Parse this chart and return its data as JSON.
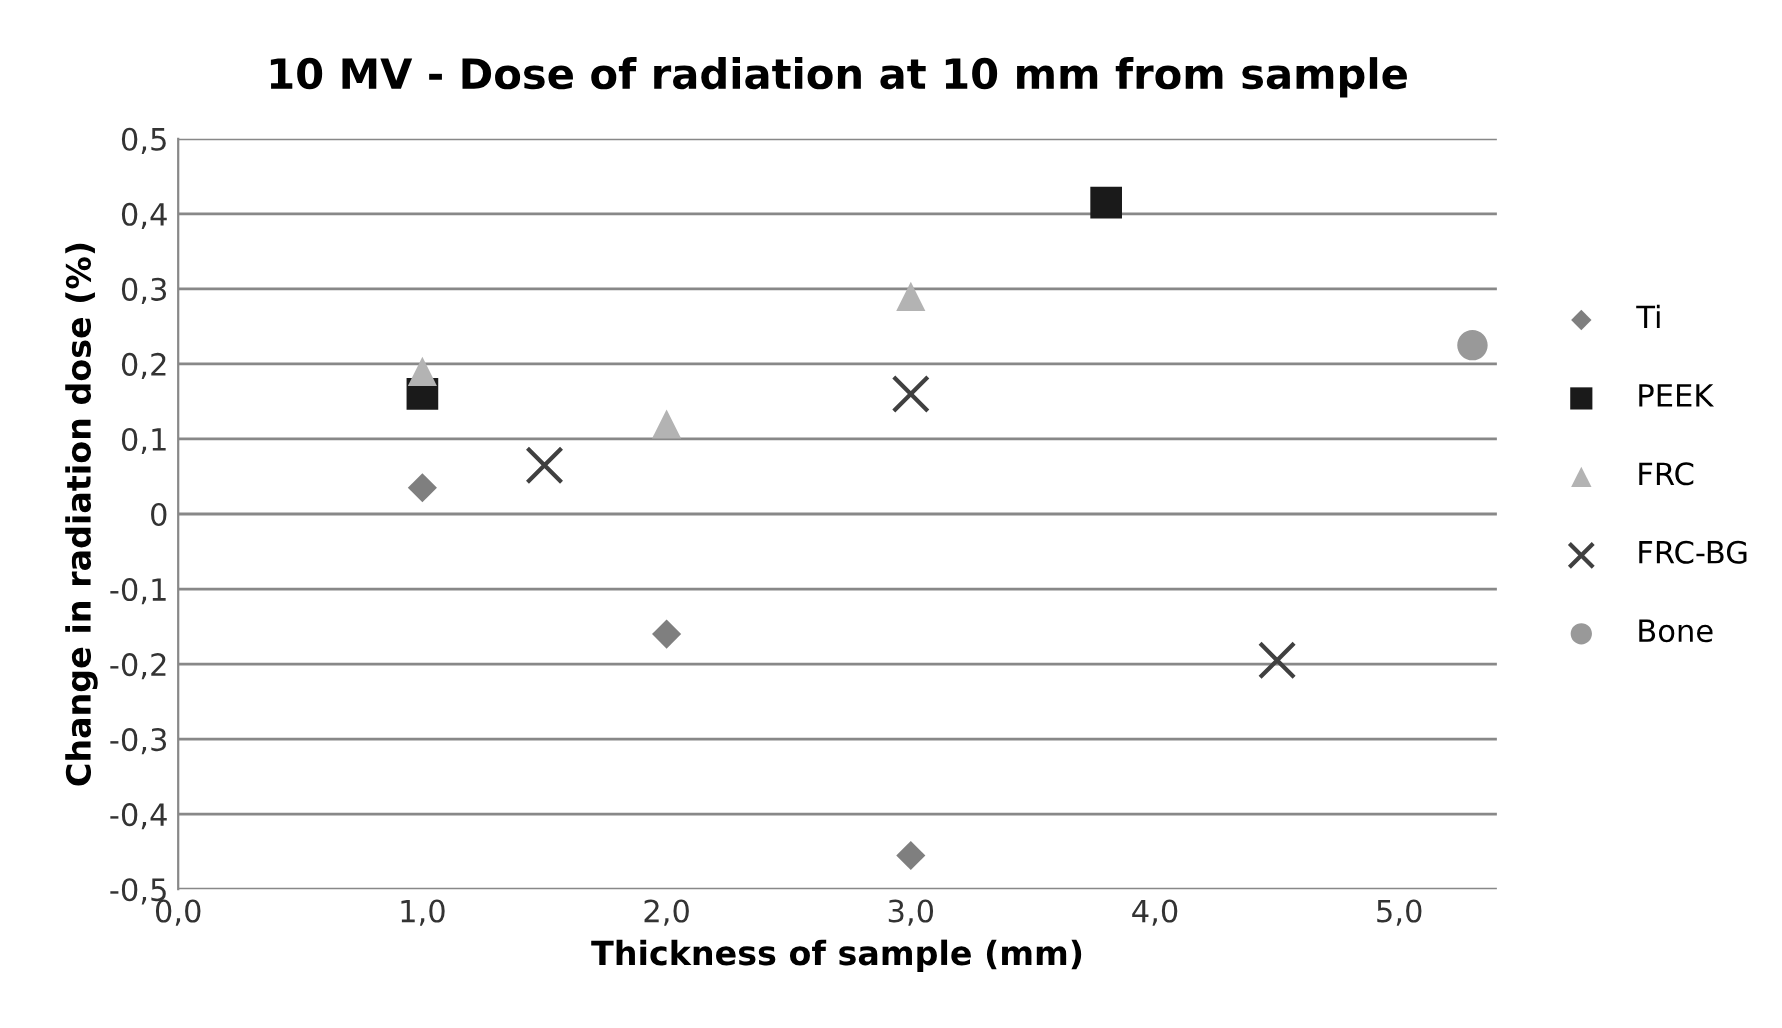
{
  "chart_data": {
    "type": "scatter",
    "title": "10 MV - Dose of radiation at 10 mm from sample",
    "xlabel": "Thickness of sample (mm)",
    "ylabel": "Change in radiation dose (%)",
    "xlim": [
      0,
      5.4
    ],
    "ylim": [
      -0.5,
      0.5
    ],
    "xticks": [
      {
        "value": 0,
        "label": "0,0"
      },
      {
        "value": 1,
        "label": "1,0"
      },
      {
        "value": 2,
        "label": "2,0"
      },
      {
        "value": 3,
        "label": "3,0"
      },
      {
        "value": 4,
        "label": "4,0"
      },
      {
        "value": 5,
        "label": "5,0"
      }
    ],
    "yticks": [
      {
        "value": -0.5,
        "label": "-0,5"
      },
      {
        "value": -0.4,
        "label": "-0,4"
      },
      {
        "value": -0.3,
        "label": "-0,3"
      },
      {
        "value": -0.2,
        "label": "-0,2"
      },
      {
        "value": -0.1,
        "label": "-0,1"
      },
      0,
      {
        "value": 0.1,
        "label": "0,1"
      },
      {
        "value": 0.2,
        "label": "0,2"
      },
      {
        "value": 0.3,
        "label": "0,3"
      },
      {
        "value": 0.4,
        "label": "0,4"
      },
      {
        "value": 0.5,
        "label": "0,5"
      }
    ],
    "grid": "y",
    "legend": "right",
    "series": [
      {
        "name": "Ti",
        "color": "#7f7f7f",
        "marker": "diamond",
        "x": [
          1.0,
          2.0,
          3.0
        ],
        "values": [
          0.035,
          -0.16,
          -0.455
        ]
      },
      {
        "name": "PEEK",
        "color": "#1a1a1a",
        "marker": "square",
        "x": [
          1.0,
          3.8
        ],
        "values": [
          0.16,
          0.415
        ]
      },
      {
        "name": "FRC",
        "color": "#b3b3b3",
        "marker": "triangle",
        "x": [
          1.0,
          2.0,
          3.0
        ],
        "values": [
          0.19,
          0.12,
          0.29
        ]
      },
      {
        "name": "FRC-BG",
        "color": "#404040",
        "marker": "cross",
        "x": [
          1.5,
          3.0,
          4.5
        ],
        "values": [
          0.065,
          0.16,
          -0.195
        ]
      },
      {
        "name": "Bone",
        "color": "#999999",
        "marker": "circle",
        "x": [
          5.3
        ],
        "values": [
          0.225
        ]
      }
    ]
  }
}
